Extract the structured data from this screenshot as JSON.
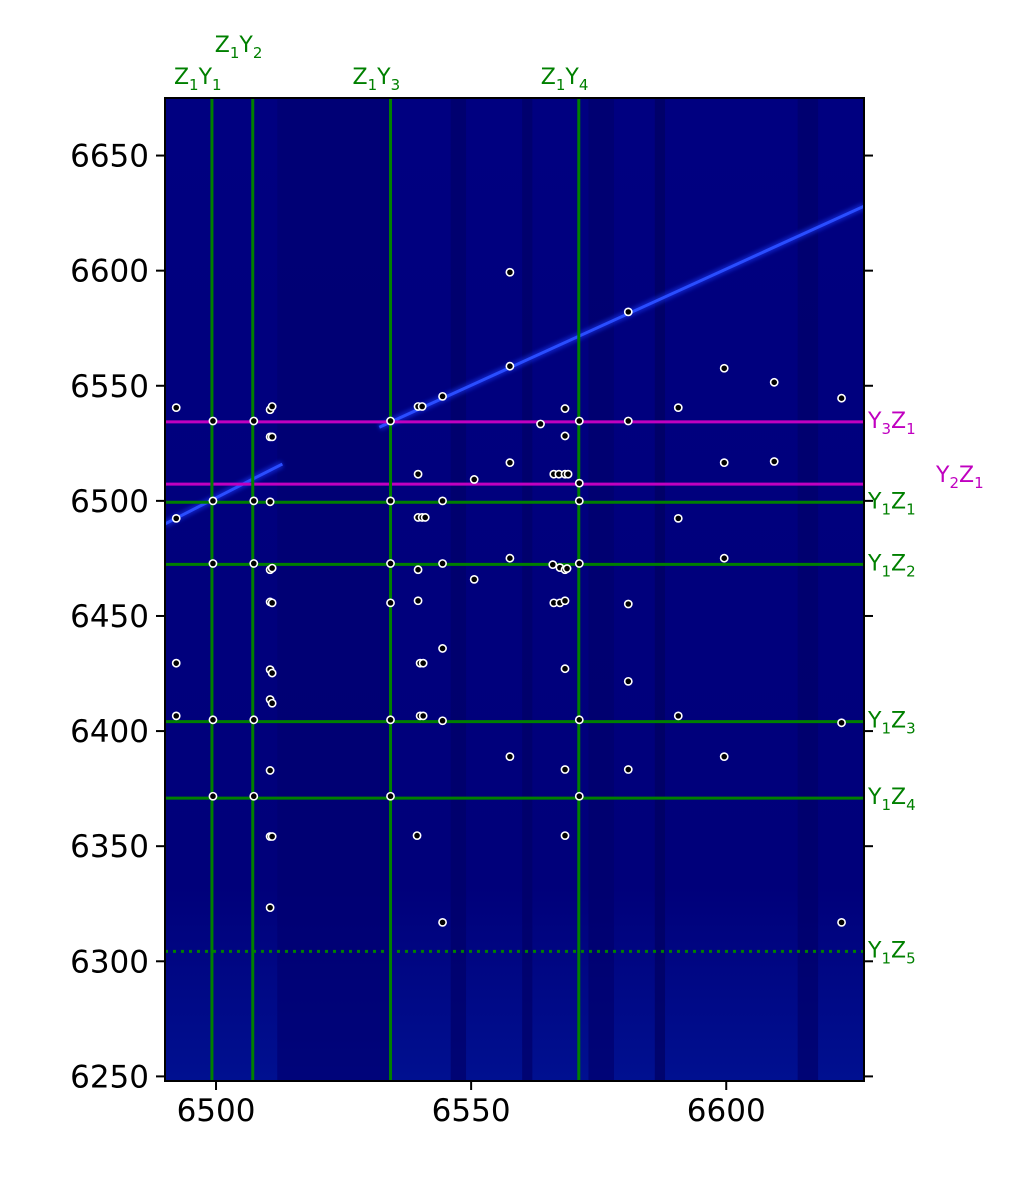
{
  "chart_data": {
    "type": "heatmap",
    "title": "",
    "xlabel": "",
    "ylabel": "",
    "xlim": [
      6490,
      6627
    ],
    "ylim": [
      6248,
      6675
    ],
    "xticks": [
      6500,
      6550,
      6600
    ],
    "yticks": [
      6250,
      6300,
      6350,
      6400,
      6450,
      6500,
      6550,
      6600,
      6650
    ],
    "right_ticks": [
      6250,
      6300,
      6350,
      6400,
      6450,
      6500,
      6550,
      6600,
      6650
    ],
    "colors": {
      "background": "#00007a",
      "streak": "#1a3cff",
      "green_line": "#008000",
      "magenta_line": "#c000c0",
      "point_fill": "#000000",
      "point_stroke": "#ffffff"
    },
    "vertical_lines": [
      {
        "x": 6499.2,
        "color": "green",
        "style": "solid"
      },
      {
        "x": 6507.2,
        "color": "green",
        "style": "solid"
      },
      {
        "x": 6534.2,
        "color": "green",
        "style": "solid"
      },
      {
        "x": 6571.1,
        "color": "green",
        "style": "solid"
      }
    ],
    "horizontal_lines": [
      {
        "y": 6534.3,
        "color": "magenta",
        "style": "solid"
      },
      {
        "y": 6507.3,
        "color": "magenta",
        "style": "solid"
      },
      {
        "y": 6499.4,
        "color": "green",
        "style": "solid"
      },
      {
        "y": 6472.4,
        "color": "green",
        "style": "solid"
      },
      {
        "y": 6404.1,
        "color": "green",
        "style": "solid"
      },
      {
        "y": 6370.9,
        "color": "green",
        "style": "solid"
      },
      {
        "y": 6304.3,
        "color": "green",
        "style": "dotted"
      }
    ],
    "top_labels": [
      {
        "main": "Z",
        "s1": "1",
        "main2": "Y",
        "s2": "2",
        "x": 6507.2,
        "row": 2
      },
      {
        "main": "Z",
        "s1": "1",
        "main2": "Y",
        "s2": "1",
        "x": 6499.2,
        "row": 1
      },
      {
        "main": "Z",
        "s1": "1",
        "main2": "Y",
        "s2": "3",
        "x": 6534.2,
        "row": 1
      },
      {
        "main": "Z",
        "s1": "1",
        "main2": "Y",
        "s2": "4",
        "x": 6571.1,
        "row": 1
      }
    ],
    "right_labels": [
      {
        "main": "Y",
        "s1": "3",
        "main2": "Z",
        "s2": "1",
        "y": 6534.3,
        "color": "magenta",
        "offset": 0
      },
      {
        "main": "Y",
        "s1": "2",
        "main2": "Z",
        "s2": "1",
        "y": 6507.3,
        "color": "magenta",
        "offset": 1
      },
      {
        "main": "Y",
        "s1": "1",
        "main2": "Z",
        "s2": "1",
        "y": 6499.4,
        "color": "green",
        "offset": 0
      },
      {
        "main": "Y",
        "s1": "1",
        "main2": "Z",
        "s2": "2",
        "y": 6472.4,
        "color": "green",
        "offset": 0
      },
      {
        "main": "Y",
        "s1": "1",
        "main2": "Z",
        "s2": "3",
        "y": 6404.1,
        "color": "green",
        "offset": 0
      },
      {
        "main": "Y",
        "s1": "1",
        "main2": "Z",
        "s2": "4",
        "y": 6370.9,
        "color": "green",
        "offset": 0
      },
      {
        "main": "Y",
        "s1": "1",
        "main2": "Z",
        "s2": "5",
        "y": 6304.3,
        "color": "green",
        "offset": 0
      }
    ],
    "streaks": [
      {
        "x1": 6490,
        "y1": 6490,
        "x2": 6513,
        "y2": 6516
      },
      {
        "x1": 6532,
        "y1": 6532,
        "x2": 6627,
        "y2": 6628
      }
    ],
    "points": [
      [
        6492.2,
        6540.5
      ],
      [
        6492.2,
        6492.4
      ],
      [
        6492.2,
        6429.5
      ],
      [
        6492.2,
        6406.6
      ],
      [
        6499.4,
        6534.7
      ],
      [
        6499.4,
        6500.0
      ],
      [
        6499.4,
        6472.8
      ],
      [
        6499.4,
        6404.9
      ],
      [
        6499.4,
        6371.7
      ],
      [
        6507.4,
        6534.7
      ],
      [
        6507.4,
        6500.0
      ],
      [
        6507.4,
        6472.8
      ],
      [
        6507.4,
        6404.9
      ],
      [
        6507.4,
        6371.7
      ],
      [
        6510.6,
        6539.6
      ],
      [
        6511.0,
        6541.0
      ],
      [
        6510.6,
        6527.8
      ],
      [
        6511.0,
        6527.8
      ],
      [
        6510.6,
        6499.6
      ],
      [
        6510.6,
        6470.1
      ],
      [
        6511.0,
        6470.8
      ],
      [
        6510.6,
        6456.1
      ],
      [
        6511.0,
        6455.7
      ],
      [
        6510.6,
        6426.7
      ],
      [
        6511.0,
        6425.2
      ],
      [
        6510.6,
        6413.7
      ],
      [
        6511.0,
        6412.1
      ],
      [
        6510.6,
        6382.9
      ],
      [
        6510.6,
        6354.2
      ],
      [
        6511.0,
        6354.2
      ],
      [
        6510.6,
        6323.3
      ],
      [
        6534.2,
        6534.7
      ],
      [
        6534.2,
        6500.0
      ],
      [
        6534.2,
        6472.8
      ],
      [
        6534.2,
        6455.7
      ],
      [
        6534.2,
        6404.9
      ],
      [
        6534.2,
        6371.7
      ],
      [
        6539.6,
        6541.0
      ],
      [
        6540.4,
        6541.0
      ],
      [
        6539.6,
        6511.6
      ],
      [
        6539.6,
        6492.8
      ],
      [
        6540.4,
        6492.8
      ],
      [
        6541.0,
        6492.8
      ],
      [
        6539.6,
        6470.1
      ],
      [
        6539.6,
        6456.6
      ],
      [
        6540.0,
        6429.5
      ],
      [
        6540.6,
        6429.5
      ],
      [
        6540.0,
        6406.6
      ],
      [
        6540.6,
        6406.6
      ],
      [
        6539.4,
        6354.6
      ],
      [
        6544.4,
        6545.4
      ],
      [
        6544.4,
        6500.0
      ],
      [
        6544.4,
        6472.8
      ],
      [
        6544.4,
        6435.9
      ],
      [
        6544.4,
        6404.5
      ],
      [
        6544.4,
        6316.9
      ],
      [
        6550.6,
        6509.3
      ],
      [
        6550.6,
        6465.9
      ],
      [
        6557.6,
        6599.3
      ],
      [
        6557.6,
        6558.5
      ],
      [
        6557.6,
        6516.6
      ],
      [
        6557.6,
        6475.1
      ],
      [
        6557.6,
        6388.9
      ],
      [
        6563.6,
        6533.4
      ],
      [
        6566.2,
        6511.6
      ],
      [
        6566.0,
        6472.3
      ],
      [
        6566.2,
        6455.7
      ],
      [
        6567.2,
        6511.6
      ],
      [
        6567.4,
        6471.0
      ],
      [
        6567.4,
        6455.7
      ],
      [
        6568.4,
        6540.1
      ],
      [
        6568.4,
        6528.2
      ],
      [
        6568.4,
        6511.6
      ],
      [
        6568.4,
        6470.1
      ],
      [
        6568.4,
        6456.6
      ],
      [
        6568.4,
        6427.1
      ],
      [
        6568.4,
        6383.3
      ],
      [
        6568.4,
        6354.6
      ],
      [
        6569.0,
        6511.6
      ],
      [
        6568.8,
        6470.6
      ],
      [
        6571.2,
        6534.7
      ],
      [
        6571.2,
        6507.7
      ],
      [
        6571.2,
        6500.0
      ],
      [
        6571.2,
        6472.8
      ],
      [
        6571.2,
        6404.9
      ],
      [
        6571.2,
        6371.7
      ],
      [
        6580.8,
        6582.1
      ],
      [
        6580.8,
        6534.7
      ],
      [
        6580.8,
        6455.2
      ],
      [
        6580.8,
        6421.6
      ],
      [
        6580.8,
        6383.3
      ],
      [
        6590.6,
        6540.5
      ],
      [
        6590.6,
        6492.4
      ],
      [
        6590.6,
        6406.6
      ],
      [
        6599.6,
        6557.6
      ],
      [
        6599.6,
        6516.6
      ],
      [
        6599.6,
        6475.1
      ],
      [
        6599.6,
        6388.9
      ],
      [
        6609.4,
        6551.5
      ],
      [
        6609.4,
        6517.1
      ],
      [
        6622.6,
        6544.6
      ],
      [
        6622.6,
        6403.6
      ],
      [
        6622.6,
        6316.9
      ]
    ]
  }
}
